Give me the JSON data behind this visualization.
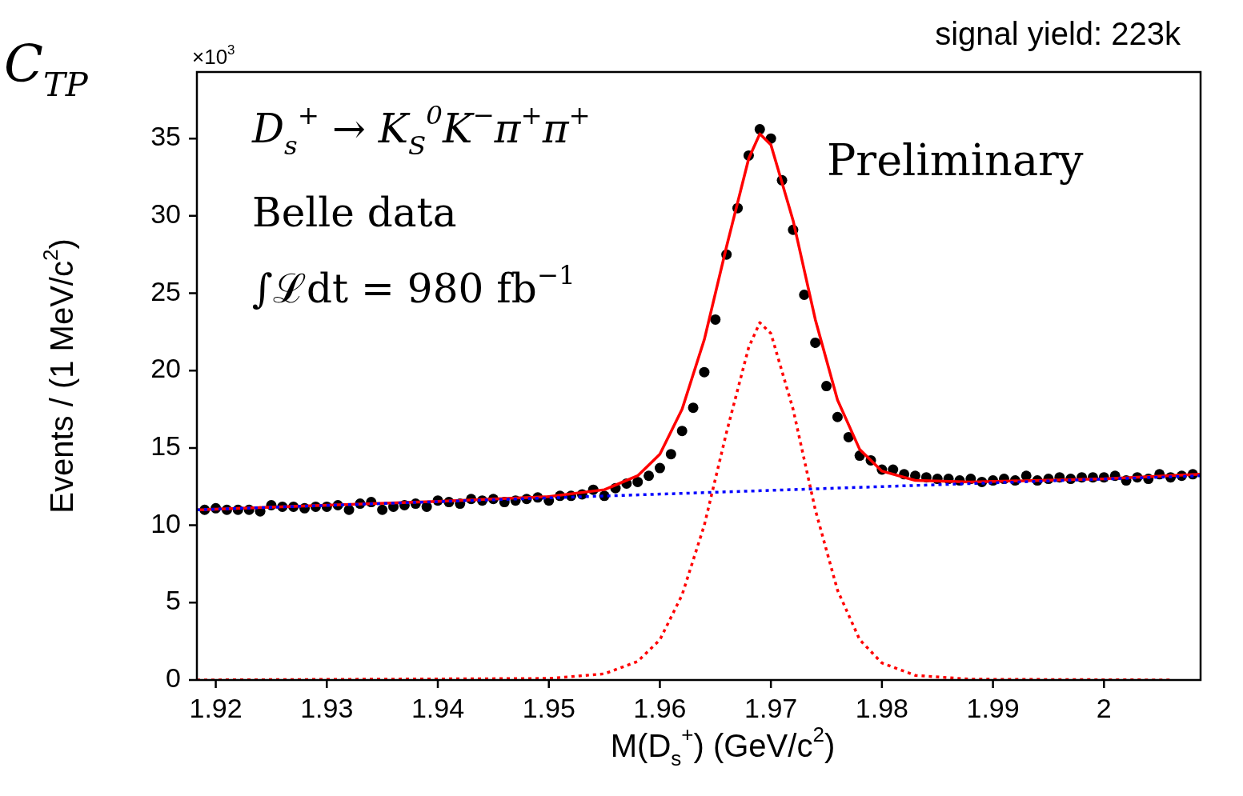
{
  "chart_data": {
    "type": "scatter",
    "xlabel": "M(D$_{s}$$^{+}$) (GeV/c$^{2}$)",
    "ylabel": "Events / (1 MeV/c$^{2}$)",
    "xlim": [
      1.9183,
      2.0087
    ],
    "xticks": [
      1.92,
      1.93,
      1.94,
      1.95,
      1.96,
      1.97,
      1.98,
      1.99,
      {
        "value": 2.0,
        "label": "2"
      }
    ],
    "ylim": [
      0,
      39.3
    ],
    "yticks": [
      0,
      5,
      10,
      15,
      20,
      25,
      30,
      35
    ],
    "annotations": [
      "C$_{TP}$",
      "×10$^{3}$",
      "signal yield: 223k",
      "D$_{s}$$^{+}$ → K$_{S}$$^{0}$K$^{−}$π$^{+}$π$^{+}$",
      "Belle data",
      "∫ℒdt = 980  fb$^{−1}$",
      "Preliminary"
    ],
    "series": [
      {
        "type": "scatter",
        "color": "#000000",
        "marker": "circle",
        "x": [
          1.919,
          1.92,
          1.921,
          1.922,
          1.923,
          1.924,
          1.925,
          1.926,
          1.927,
          1.928,
          1.929,
          1.93,
          1.931,
          1.932,
          1.933,
          1.934,
          1.935,
          1.936,
          1.937,
          1.938,
          1.939,
          1.94,
          1.941,
          1.942,
          1.943,
          1.944,
          1.945,
          1.946,
          1.947,
          1.948,
          1.949,
          1.95,
          1.951,
          1.952,
          1.953,
          1.954,
          1.955,
          1.956,
          1.957,
          1.958,
          1.959,
          1.96,
          1.961,
          1.962,
          1.963,
          1.964,
          1.965,
          1.966,
          1.967,
          1.968,
          1.969,
          1.97,
          1.971,
          1.972,
          1.973,
          1.974,
          1.975,
          1.976,
          1.977,
          1.978,
          1.979,
          1.98,
          1.981,
          1.982,
          1.983,
          1.984,
          1.985,
          1.986,
          1.987,
          1.988,
          1.989,
          1.99,
          1.991,
          1.992,
          1.993,
          1.994,
          1.995,
          1.996,
          1.997,
          1.998,
          1.999,
          2.0,
          2.001,
          2.002,
          2.003,
          2.004,
          2.005,
          2.006,
          2.007,
          2.008
        ],
        "values": [
          11.0,
          11.1,
          11.0,
          11.0,
          11.0,
          10.9,
          11.3,
          11.2,
          11.2,
          11.1,
          11.2,
          11.2,
          11.3,
          11.0,
          11.4,
          11.5,
          11.0,
          11.2,
          11.3,
          11.4,
          11.2,
          11.6,
          11.5,
          11.4,
          11.7,
          11.6,
          11.7,
          11.5,
          11.6,
          11.7,
          11.8,
          11.6,
          11.9,
          11.9,
          12.0,
          12.3,
          11.9,
          12.4,
          12.7,
          12.8,
          13.2,
          13.7,
          14.6,
          16.1,
          17.6,
          19.9,
          23.3,
          27.5,
          30.5,
          33.9,
          35.6,
          35.0,
          32.3,
          29.1,
          24.9,
          21.8,
          19.0,
          17.0,
          15.7,
          14.5,
          14.2,
          13.6,
          13.6,
          13.3,
          13.2,
          13.1,
          13.0,
          13.0,
          12.9,
          13.0,
          12.8,
          12.9,
          13.0,
          12.9,
          13.2,
          12.9,
          13.0,
          13.1,
          13.0,
          13.1,
          13.1,
          13.1,
          13.2,
          12.9,
          13.1,
          13.0,
          13.3,
          13.1,
          13.2,
          13.3
        ]
      },
      {
        "type": "line",
        "color": "#ff0000",
        "line_style": "solid",
        "x": [
          1.9183,
          1.93,
          1.94,
          1.95,
          1.955,
          1.958,
          1.96,
          1.962,
          1.964,
          1.966,
          1.968,
          1.969,
          1.97,
          1.972,
          1.974,
          1.976,
          1.978,
          1.98,
          1.983,
          1.988,
          2.0,
          2.0087
        ],
        "values": [
          11.0,
          11.3,
          11.55,
          11.85,
          12.3,
          13.2,
          14.6,
          17.5,
          22.0,
          28.0,
          33.7,
          35.3,
          34.6,
          29.7,
          23.3,
          18.1,
          14.9,
          13.5,
          12.9,
          12.8,
          13.0,
          13.3
        ]
      },
      {
        "type": "line",
        "color": "#ff0000",
        "line_style": "dotted",
        "x": [
          1.9183,
          1.95,
          1.955,
          1.958,
          1.96,
          1.962,
          1.964,
          1.966,
          1.968,
          1.969,
          1.97,
          1.972,
          1.974,
          1.976,
          1.978,
          1.98,
          1.983,
          1.988,
          2.006
        ],
        "values": [
          0,
          0.1,
          0.4,
          1.2,
          2.6,
          5.5,
          10.0,
          16.0,
          21.5,
          23.1,
          22.4,
          17.5,
          11.0,
          5.8,
          2.6,
          1.1,
          0.3,
          0.05,
          0
        ]
      },
      {
        "type": "line",
        "color": "#0000ff",
        "line_style": "dotted",
        "x": [
          1.9183,
          2.0087
        ],
        "values": [
          11.0,
          13.2
        ]
      }
    ]
  }
}
